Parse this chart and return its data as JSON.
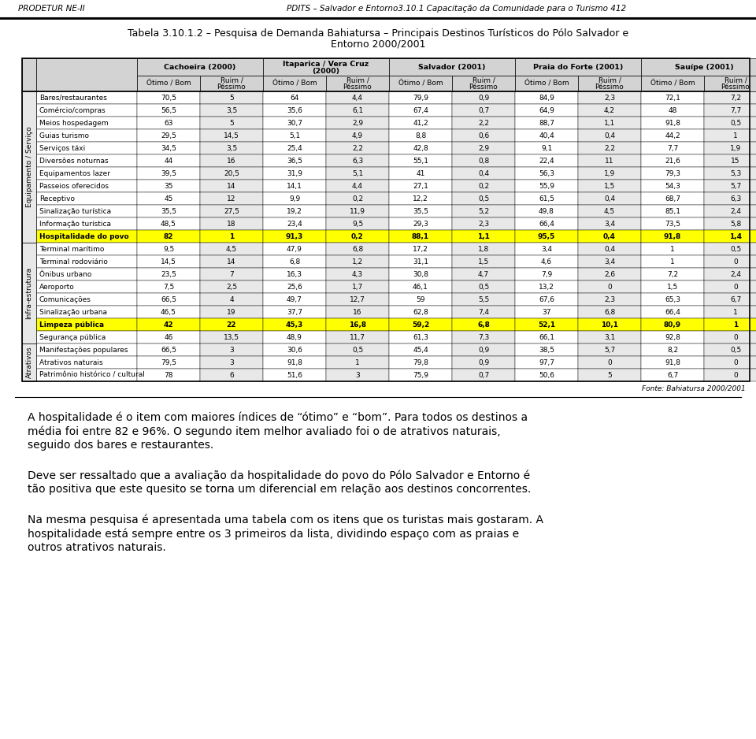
{
  "header_top_left": "PRODETUR NE-II",
  "header_top_right": "PDITS – Salvador e Entorno3.10.1 Capacitação da Comunidade para o Turismo 412",
  "title_line1": "Tabela 3.10.1.2 – Pesquisa de Demanda Bahiatursa – Principais Destinos Turísticos do Pólo Salvador e",
  "title_line2": "Entorno 2000/2001",
  "col_groups": [
    {
      "name": "Cachoeira (2000)"
    },
    {
      "name": "Itaparica / Vera Cruz\n(2000)"
    },
    {
      "name": "Salvador (2001)"
    },
    {
      "name": "Praia do Forte (2001)"
    },
    {
      "name": "Sauípe (2001)"
    }
  ],
  "sub_headers": [
    "Ótimo / Bom",
    "Ruim /\nPéssimo"
  ],
  "row_groups": [
    {
      "group": "Equipamento / Serviço",
      "rows": [
        {
          "label": "Bares/restaurantes",
          "values": [
            "70,5",
            "5",
            "64",
            "4,4",
            "79,9",
            "0,9",
            "84,9",
            "2,3",
            "72,1",
            "7,2"
          ]
        },
        {
          "label": "Comércio/compras",
          "values": [
            "56,5",
            "3,5",
            "35,6",
            "6,1",
            "67,4",
            "0,7",
            "64,9",
            "4,2",
            "48",
            "7,7"
          ]
        },
        {
          "label": "Meios hospedagem",
          "values": [
            "63",
            "5",
            "30,7",
            "2,9",
            "41,2",
            "2,2",
            "88,7",
            "1,1",
            "91,8",
            "0,5"
          ]
        },
        {
          "label": "Guias turismo",
          "values": [
            "29,5",
            "14,5",
            "5,1",
            "4,9",
            "8,8",
            "0,6",
            "40,4",
            "0,4",
            "44,2",
            "1"
          ]
        },
        {
          "label": "Serviços táxi",
          "values": [
            "34,5",
            "3,5",
            "25,4",
            "2,2",
            "42,8",
            "2,9",
            "9,1",
            "2,2",
            "7,7",
            "1,9"
          ]
        },
        {
          "label": "Diversões noturnas",
          "values": [
            "44",
            "16",
            "36,5",
            "6,3",
            "55,1",
            "0,8",
            "22,4",
            "11",
            "21,6",
            "15"
          ]
        },
        {
          "label": "Equipamentos lazer",
          "values": [
            "39,5",
            "20,5",
            "31,9",
            "5,1",
            "41",
            "0,4",
            "56,3",
            "1,9",
            "79,3",
            "5,3"
          ]
        },
        {
          "label": "Passeios oferecidos",
          "values": [
            "35",
            "14",
            "14,1",
            "4,4",
            "27,1",
            "0,2",
            "55,9",
            "1,5",
            "54,3",
            "5,7"
          ]
        },
        {
          "label": "Receptivo",
          "values": [
            "45",
            "12",
            "9,9",
            "0,2",
            "12,2",
            "0,5",
            "61,5",
            "0,4",
            "68,7",
            "6,3"
          ]
        },
        {
          "label": "Sinalização turística",
          "values": [
            "35,5",
            "27,5",
            "19,2",
            "11,9",
            "35,5",
            "5,2",
            "49,8",
            "4,5",
            "85,1",
            "2,4"
          ]
        },
        {
          "label": "Informação turística",
          "values": [
            "48,5",
            "18",
            "23,4",
            "9,5",
            "29,3",
            "2,3",
            "66,4",
            "3,4",
            "73,5",
            "5,8"
          ]
        },
        {
          "label": "Hospitalidade do povo",
          "values": [
            "82",
            "1",
            "91,3",
            "0,2",
            "88,1",
            "1,1",
            "95,5",
            "0,4",
            "91,8",
            "1,4"
          ],
          "highlight": true
        }
      ]
    },
    {
      "group": "Infra-estrutura",
      "rows": [
        {
          "label": "Terminal marítimo",
          "values": [
            "9,5",
            "4,5",
            "47,9",
            "6,8",
            "17,2",
            "1,8",
            "3,4",
            "0,4",
            "1",
            "0,5"
          ]
        },
        {
          "label": "Terminal rodoviário",
          "values": [
            "14,5",
            "14",
            "6,8",
            "1,2",
            "31,1",
            "1,5",
            "4,6",
            "3,4",
            "1",
            "0"
          ]
        },
        {
          "label": "Ônibus urbano",
          "values": [
            "23,5",
            "7",
            "16,3",
            "4,3",
            "30,8",
            "4,7",
            "7,9",
            "2,6",
            "7,2",
            "2,4"
          ]
        },
        {
          "label": "Aeroporto",
          "values": [
            "7,5",
            "2,5",
            "25,6",
            "1,7",
            "46,1",
            "0,5",
            "13,2",
            "0",
            "1,5",
            "0"
          ]
        },
        {
          "label": "Comunicações",
          "values": [
            "66,5",
            "4",
            "49,7",
            "12,7",
            "59",
            "5,5",
            "67,6",
            "2,3",
            "65,3",
            "6,7"
          ]
        },
        {
          "label": "Sinalização urbana",
          "values": [
            "46,5",
            "19",
            "37,7",
            "16",
            "62,8",
            "7,4",
            "37",
            "6,8",
            "66,4",
            "1"
          ]
        },
        {
          "label": "Limpeza pública",
          "values": [
            "42",
            "22",
            "45,3",
            "16,8",
            "59,2",
            "6,8",
            "52,1",
            "10,1",
            "80,9",
            "1"
          ],
          "highlight": true
        },
        {
          "label": "Segurança pública",
          "values": [
            "46",
            "13,5",
            "48,9",
            "11,7",
            "61,3",
            "7,3",
            "66,1",
            "3,1",
            "92,8",
            "0"
          ]
        }
      ]
    },
    {
      "group": "Atrativos",
      "rows": [
        {
          "label": "Manifestações populares",
          "values": [
            "66,5",
            "3",
            "30,6",
            "0,5",
            "45,4",
            "0,9",
            "38,5",
            "5,7",
            "8,2",
            "0,5"
          ]
        },
        {
          "label": "Atrativos naturais",
          "values": [
            "79,5",
            "3",
            "91,8",
            "1",
            "79,8",
            "0,9",
            "97,7",
            "0",
            "91,8",
            "0"
          ]
        },
        {
          "label": "Patrimônio histórico / cultural",
          "values": [
            "78",
            "6",
            "51,6",
            "3",
            "75,9",
            "0,7",
            "50,6",
            "5",
            "6,7",
            "0"
          ]
        }
      ]
    }
  ],
  "source": "Fonte: Bahiatursa 2000/2001",
  "para1": "A hospitalidade é o item com maiores índices de “ótimo” e “bom”. Para todos os destinos a média foi entre 82 e 96%. O segundo item melhor avaliado foi o de atrativos naturais, seguido dos bares e restaurantes.",
  "para2": "Deve ser ressaltado que a avaliação da hospitalidade do povo do Pólo Salvador e Entorno é tão positiva que este quesito se torna um diferencial em relação aos destinos concorrentes.",
  "para3": "Na mesma pesquisa é apresentada uma tabela com os itens que os turistas mais gostaram. A hospitalidade está sempre entre os 3 primeiros da lista, dividindo espaço com as praias e outros atrativos naturais.",
  "highlight_color": "#ffff00",
  "header_bg": "#d3d3d3",
  "alt_row_bg": "#e8e8e8",
  "white_bg": "#ffffff"
}
